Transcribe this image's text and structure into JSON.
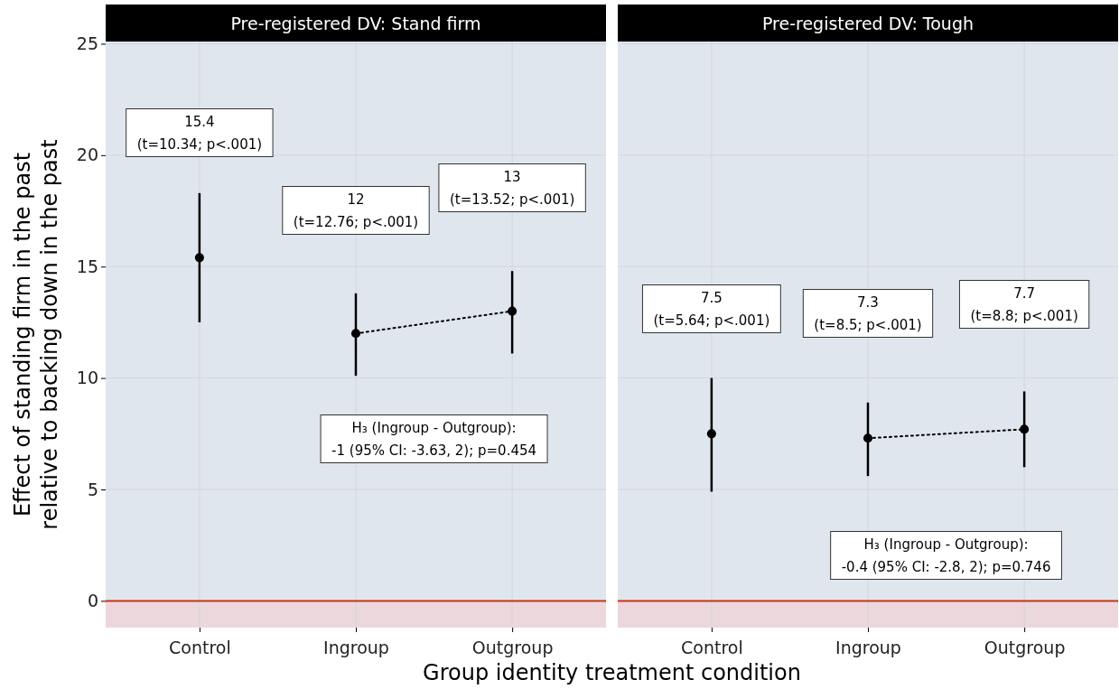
{
  "chart_data": [
    {
      "type": "scatter",
      "title": "Pre-registered DV: Stand firm",
      "ylabel": "Effect of standing firm in the past\nrelative to backing down in the past",
      "xlabel": "Group identity treatment condition",
      "categories": [
        "Control",
        "Ingroup",
        "Outgroup"
      ],
      "series": [
        {
          "type": "scatter",
          "color": "#000000",
          "marker": "circle",
          "values": [
            15.4,
            12,
            13
          ],
          "errors": [
            [
              12.5,
              18.3
            ],
            [
              10.1,
              13.8
            ],
            [
              11.1,
              14.8
            ]
          ]
        },
        {
          "type": "line",
          "color": "#000000",
          "marker": "none",
          "line_style": "dotted",
          "values": [
            null,
            12,
            13
          ]
        }
      ],
      "ylim": [
        -1.2,
        25.1
      ],
      "yticks": [
        0,
        5,
        10,
        15,
        20,
        25
      ],
      "grid": true,
      "ref_lines": [
        {
          "axis": "y",
          "value": 0,
          "color": "#cc3311"
        }
      ],
      "bands": [
        {
          "axis": "y",
          "from": -1.2,
          "to": 0,
          "color": "#ebd7dc"
        }
      ],
      "annotations": [
        "15.4\n(t=10.34; p<.001)",
        "12\n(t=12.76; p<.001)",
        "13\n(t=13.52; p<.001)",
        "H₃ (Ingroup - Outgroup):\n-1 (95% CI: -3.63, 2); p=0.454"
      ]
    },
    {
      "type": "scatter",
      "title": "Pre-registered DV: Tough",
      "categories": [
        "Control",
        "Ingroup",
        "Outgroup"
      ],
      "series": [
        {
          "type": "scatter",
          "color": "#000000",
          "marker": "circle",
          "values": [
            7.5,
            7.3,
            7.7
          ],
          "errors": [
            [
              4.9,
              10.0
            ],
            [
              5.6,
              8.9
            ],
            [
              6.0,
              9.4
            ]
          ]
        },
        {
          "type": "line",
          "color": "#000000",
          "marker": "none",
          "line_style": "dotted",
          "values": [
            null,
            7.3,
            7.7
          ]
        }
      ],
      "ylim": [
        -1.2,
        25.1
      ],
      "yticks": [
        0,
        5,
        10,
        15,
        20,
        25
      ],
      "grid": true,
      "tick_labels": "x",
      "ref_lines": [
        {
          "axis": "y",
          "value": 0,
          "color": "#cc3311"
        }
      ],
      "bands": [
        {
          "axis": "y",
          "from": -1.2,
          "to": 0,
          "color": "#ebd7dc"
        }
      ],
      "annotations": [
        "7.5\n(t=5.64; p<.001)",
        "7.3\n(t=8.5; p<.001)",
        "7.7\n(t=8.8; p<.001)",
        "H₃ (Ingroup - Outgroup):\n-0.4 (95% CI: -2.8, 2); p=0.746"
      ]
    }
  ]
}
